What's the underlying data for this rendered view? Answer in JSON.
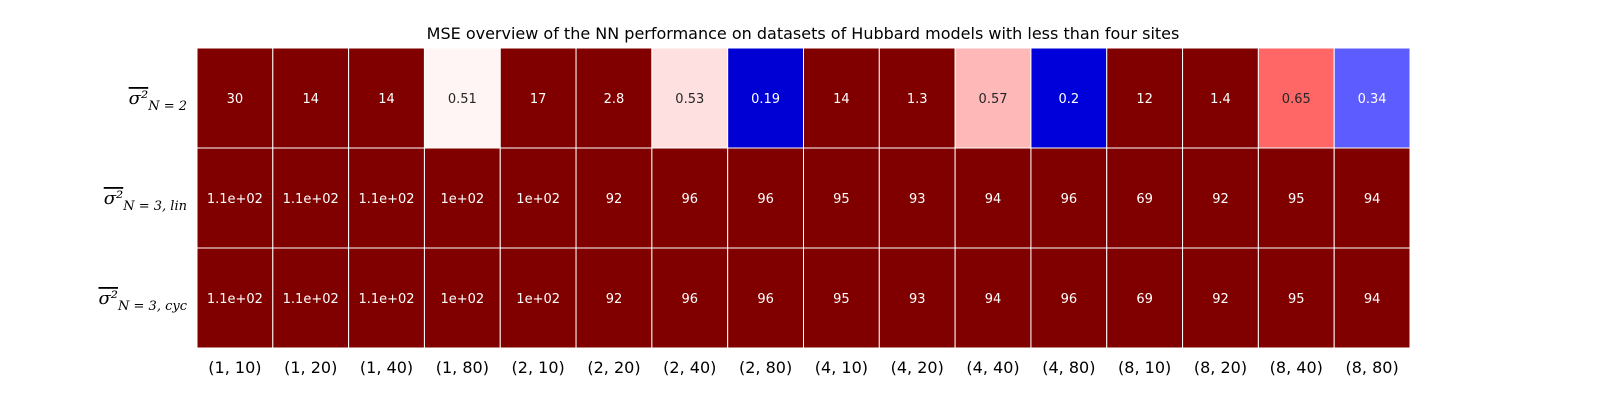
{
  "chart_data": {
    "type": "heatmap",
    "title": "MSE overview of the NN performance on datasets of Hubbard models with less than four sites",
    "x_tick_labels": [
      "(1, 10)",
      "(1, 20)",
      "(1, 40)",
      "(1, 80)",
      "(2, 10)",
      "(2, 20)",
      "(2, 40)",
      "(2, 80)",
      "(4, 10)",
      "(4, 20)",
      "(4, 40)",
      "(4, 80)",
      "(8, 10)",
      "(8, 20)",
      "(8, 40)",
      "(8, 80)"
    ],
    "y_tick_labels": [
      {
        "main": "σ²",
        "sub": "N = 2"
      },
      {
        "main": "σ²",
        "sub": "N = 3, lin"
      },
      {
        "main": "σ²",
        "sub": "N = 3, cyc"
      }
    ],
    "values": [
      [
        30,
        14,
        14,
        0.51,
        17,
        2.8,
        0.53,
        0.19,
        14,
        1.3,
        0.57,
        0.2,
        12,
        1.4,
        0.65,
        0.34
      ],
      [
        110,
        110,
        110,
        100,
        100,
        92,
        96,
        96,
        95,
        93,
        94,
        96,
        69,
        92,
        95,
        94
      ],
      [
        110,
        110,
        110,
        100,
        100,
        92,
        96,
        96,
        95,
        93,
        94,
        96,
        69,
        92,
        95,
        94
      ]
    ],
    "annotations": [
      [
        "30",
        "14",
        "14",
        "0.51",
        "17",
        "2.8",
        "0.53",
        "0.19",
        "14",
        "1.3",
        "0.57",
        "0.2",
        "12",
        "1.4",
        "0.65",
        "0.34"
      ],
      [
        "1.1e+02",
        "1.1e+02",
        "1.1e+02",
        "1e+02",
        "1e+02",
        "92",
        "96",
        "96",
        "95",
        "93",
        "94",
        "96",
        "69",
        "92",
        "95",
        "94"
      ],
      [
        "1.1e+02",
        "1.1e+02",
        "1.1e+02",
        "1e+02",
        "1e+02",
        "92",
        "96",
        "96",
        "95",
        "93",
        "94",
        "96",
        "69",
        "92",
        "95",
        "94"
      ]
    ],
    "colormap": "seismic",
    "color_center": 0.5,
    "color_max": 1.0,
    "colorbar": false,
    "grid": false
  }
}
